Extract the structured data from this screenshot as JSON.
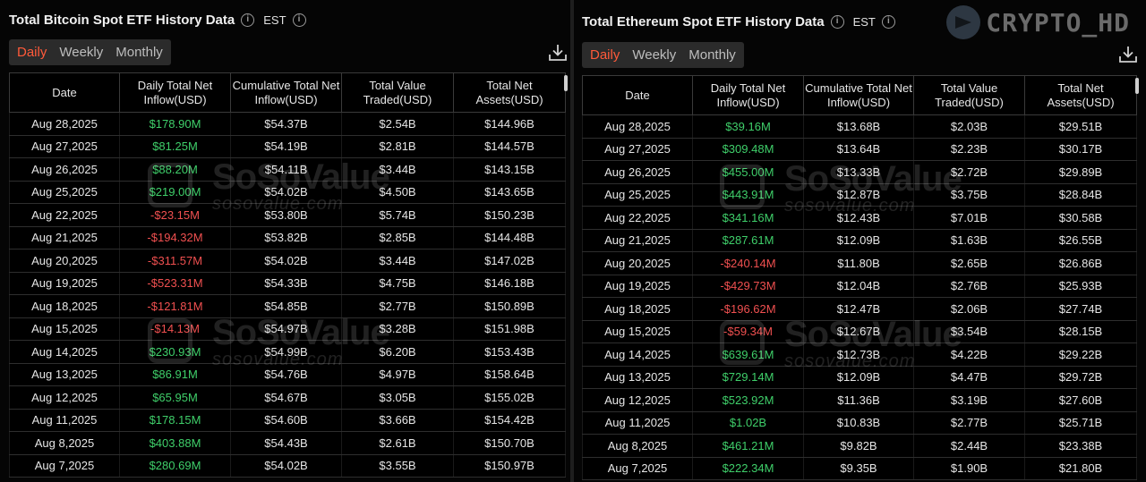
{
  "brand": {
    "corner_text": "CRYPTO_HD"
  },
  "watermark": {
    "logo": "SoSoValue",
    "url": "sosovalue.com"
  },
  "colors": {
    "positive": "#3fcf6a",
    "negative": "#f05050",
    "active_tab": "#ff5a3a"
  },
  "btc": {
    "title": "Total Bitcoin Spot ETF History Data",
    "timezone": "EST",
    "tabs": [
      "Daily",
      "Weekly",
      "Monthly"
    ],
    "active_tab": "Daily",
    "headers": [
      "Date",
      "Daily Total Net Inflow(USD)",
      "Cumulative Total Net Inflow(USD)",
      "Total Value Traded(USD)",
      "Total Net Assets(USD)"
    ],
    "rows": [
      [
        "Aug 28,2025",
        "$178.90M",
        "$54.37B",
        "$2.54B",
        "$144.96B"
      ],
      [
        "Aug 27,2025",
        "$81.25M",
        "$54.19B",
        "$2.81B",
        "$144.57B"
      ],
      [
        "Aug 26,2025",
        "$88.20M",
        "$54.11B",
        "$3.44B",
        "$143.15B"
      ],
      [
        "Aug 25,2025",
        "$219.00M",
        "$54.02B",
        "$4.50B",
        "$143.65B"
      ],
      [
        "Aug 22,2025",
        "-$23.15M",
        "$53.80B",
        "$5.74B",
        "$150.23B"
      ],
      [
        "Aug 21,2025",
        "-$194.32M",
        "$53.82B",
        "$2.85B",
        "$144.48B"
      ],
      [
        "Aug 20,2025",
        "-$311.57M",
        "$54.02B",
        "$3.44B",
        "$147.02B"
      ],
      [
        "Aug 19,2025",
        "-$523.31M",
        "$54.33B",
        "$4.75B",
        "$146.18B"
      ],
      [
        "Aug 18,2025",
        "-$121.81M",
        "$54.85B",
        "$2.77B",
        "$150.89B"
      ],
      [
        "Aug 15,2025",
        "-$14.13M",
        "$54.97B",
        "$3.28B",
        "$151.98B"
      ],
      [
        "Aug 14,2025",
        "$230.93M",
        "$54.99B",
        "$6.20B",
        "$153.43B"
      ],
      [
        "Aug 13,2025",
        "$86.91M",
        "$54.76B",
        "$4.97B",
        "$158.64B"
      ],
      [
        "Aug 12,2025",
        "$65.95M",
        "$54.67B",
        "$3.05B",
        "$155.02B"
      ],
      [
        "Aug 11,2025",
        "$178.15M",
        "$54.60B",
        "$3.66B",
        "$154.42B"
      ],
      [
        "Aug 8,2025",
        "$403.88M",
        "$54.43B",
        "$2.61B",
        "$150.70B"
      ],
      [
        "Aug 7,2025",
        "$280.69M",
        "$54.02B",
        "$3.55B",
        "$150.97B"
      ]
    ]
  },
  "eth": {
    "title": "Total Ethereum Spot ETF History Data",
    "timezone": "EST",
    "tabs": [
      "Daily",
      "Weekly",
      "Monthly"
    ],
    "active_tab": "Daily",
    "headers": [
      "Date",
      "Daily Total Net Inflow(USD)",
      "Cumulative Total Net Inflow(USD)",
      "Total Value Traded(USD)",
      "Total Net Assets(USD)"
    ],
    "rows": [
      [
        "Aug 28,2025",
        "$39.16M",
        "$13.68B",
        "$2.03B",
        "$29.51B"
      ],
      [
        "Aug 27,2025",
        "$309.48M",
        "$13.64B",
        "$2.23B",
        "$30.17B"
      ],
      [
        "Aug 26,2025",
        "$455.00M",
        "$13.33B",
        "$2.72B",
        "$29.89B"
      ],
      [
        "Aug 25,2025",
        "$443.91M",
        "$12.87B",
        "$3.75B",
        "$28.84B"
      ],
      [
        "Aug 22,2025",
        "$341.16M",
        "$12.43B",
        "$7.01B",
        "$30.58B"
      ],
      [
        "Aug 21,2025",
        "$287.61M",
        "$12.09B",
        "$1.63B",
        "$26.55B"
      ],
      [
        "Aug 20,2025",
        "-$240.14M",
        "$11.80B",
        "$2.65B",
        "$26.86B"
      ],
      [
        "Aug 19,2025",
        "-$429.73M",
        "$12.04B",
        "$2.76B",
        "$25.93B"
      ],
      [
        "Aug 18,2025",
        "-$196.62M",
        "$12.47B",
        "$2.06B",
        "$27.74B"
      ],
      [
        "Aug 15,2025",
        "-$59.34M",
        "$12.67B",
        "$3.54B",
        "$28.15B"
      ],
      [
        "Aug 14,2025",
        "$639.61M",
        "$12.73B",
        "$4.22B",
        "$29.22B"
      ],
      [
        "Aug 13,2025",
        "$729.14M",
        "$12.09B",
        "$4.47B",
        "$29.72B"
      ],
      [
        "Aug 12,2025",
        "$523.92M",
        "$11.36B",
        "$3.19B",
        "$27.60B"
      ],
      [
        "Aug 11,2025",
        "$1.02B",
        "$10.83B",
        "$2.77B",
        "$25.71B"
      ],
      [
        "Aug 8,2025",
        "$461.21M",
        "$9.82B",
        "$2.44B",
        "$23.38B"
      ],
      [
        "Aug 7,2025",
        "$222.34M",
        "$9.35B",
        "$1.90B",
        "$21.80B"
      ]
    ]
  }
}
